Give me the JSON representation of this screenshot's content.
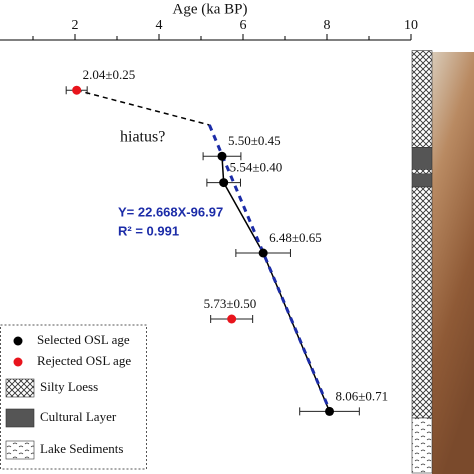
{
  "chart_data": {
    "type": "scatter",
    "x_label": "Age (ka BP)",
    "xlim": [
      0,
      10
    ],
    "xticks": [
      2,
      4,
      6,
      8,
      10
    ],
    "xminor_ticks": [
      1,
      3,
      5,
      7,
      9
    ],
    "ylim": [
      0,
      100
    ],
    "y_inverted": true,
    "series": [
      {
        "name": "Selected OSL age",
        "color": "#000000",
        "x": [
          5.5,
          5.54,
          6.48,
          8.06
        ],
        "values": [
          28,
          34,
          50,
          86
        ],
        "errors": [
          0.45,
          0.4,
          0.65,
          0.71
        ],
        "value_labels": [
          "5.50±0.45",
          "5.54±0.40",
          "6.48±0.65",
          "8.06±0.71"
        ]
      },
      {
        "name": "Rejected OSL age",
        "color": "#e8141c",
        "x": [
          2.04,
          5.73
        ],
        "values": [
          13,
          65
        ],
        "errors": [
          0.25,
          0.5
        ],
        "value_labels": [
          "2.04±0.25",
          "5.73±0.50"
        ]
      }
    ],
    "fit": {
      "equation": "Y= 22.668X-96.97",
      "r2": "R² = 0.991",
      "slope": 22.668,
      "intercept": -96.97,
      "x_start": 5.2,
      "color": "#1c2ca8"
    },
    "annotation": "hiatus?",
    "lithology": [
      {
        "name": "Silty Loess"
      },
      {
        "name": "Cultural Layer"
      },
      {
        "name": "Lake Sediments"
      }
    ],
    "column": [
      {
        "unit": 0,
        "top": 4,
        "bottom": 26
      },
      {
        "unit": 1,
        "top": 26,
        "bottom": 31
      },
      {
        "unit": 0,
        "top": 31,
        "bottom": 32
      },
      {
        "unit": 1,
        "top": 32,
        "bottom": 35
      },
      {
        "unit": 0,
        "top": 35,
        "bottom": 87.5
      },
      {
        "unit": 2,
        "top": 87.5,
        "bottom": 100
      }
    ]
  }
}
